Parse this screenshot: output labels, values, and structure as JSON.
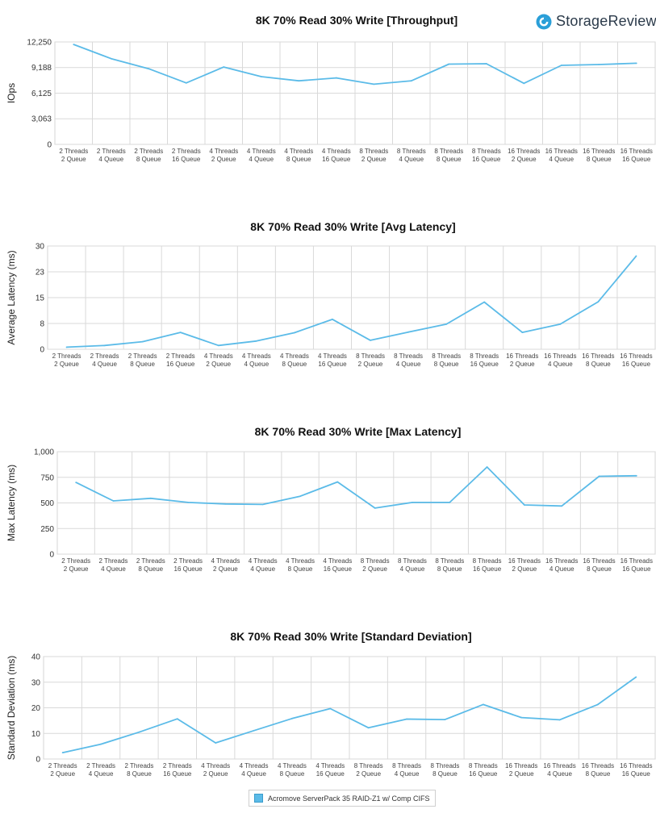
{
  "brand": {
    "logo_text": "StorageReview",
    "accent": "#5bbbe8",
    "logo_color": "#2a9fd8"
  },
  "legend": {
    "label": "Acromove ServerPack 35 RAID-Z1 w/ Comp CIFS",
    "color": "#5bbbe8"
  },
  "chart_data": [
    {
      "type": "line",
      "title": "8K 70% Read 30% Write [Throughput]",
      "ylabel": "IOps",
      "xlabel": "",
      "ylim": [
        0,
        12250
      ],
      "yticks": [
        "0",
        "3,063",
        "6,125",
        "9,188",
        "12,250"
      ],
      "ytick_values": [
        0,
        3063,
        6125,
        9188,
        12250
      ],
      "categories": [
        [
          "2 Threads",
          "2 Queue"
        ],
        [
          "2 Threads",
          "4 Queue"
        ],
        [
          "2 Threads",
          "8 Queue"
        ],
        [
          "2 Threads",
          "16 Queue"
        ],
        [
          "4 Threads",
          "2 Queue"
        ],
        [
          "4 Threads",
          "4 Queue"
        ],
        [
          "4 Threads",
          "8 Queue"
        ],
        [
          "4 Threads",
          "16 Queue"
        ],
        [
          "8 Threads",
          "2 Queue"
        ],
        [
          "8 Threads",
          "4 Queue"
        ],
        [
          "8 Threads",
          "8 Queue"
        ],
        [
          "8 Threads",
          "16 Queue"
        ],
        [
          "16 Threads",
          "2 Queue"
        ],
        [
          "16 Threads",
          "4 Queue"
        ],
        [
          "16 Threads",
          "8 Queue"
        ],
        [
          "16 Threads",
          "16 Queue"
        ]
      ],
      "series": [
        {
          "name": "Acromove ServerPack 35 RAID-Z1 w/ Comp CIFS",
          "values": [
            11950,
            10250,
            9050,
            7350,
            9250,
            8100,
            7600,
            7950,
            7200,
            7600,
            9600,
            9650,
            7300,
            9450,
            9550,
            9700
          ]
        }
      ],
      "grid": true
    },
    {
      "type": "line",
      "title": "8K 70% Read 30% Write [Avg Latency]",
      "ylabel": "Average Latency (ms)",
      "xlabel": "",
      "ylim": [
        0,
        30
      ],
      "yticks": [
        "0",
        "8",
        "15",
        "23",
        "30"
      ],
      "ytick_values": [
        0,
        7.5,
        15,
        22.5,
        30
      ],
      "categories": [
        [
          "2 Threads",
          "2 Queue"
        ],
        [
          "2 Threads",
          "4 Queue"
        ],
        [
          "2 Threads",
          "8 Queue"
        ],
        [
          "2 Threads",
          "16 Queue"
        ],
        [
          "4 Threads",
          "2 Queue"
        ],
        [
          "4 Threads",
          "4 Queue"
        ],
        [
          "4 Threads",
          "8 Queue"
        ],
        [
          "4 Threads",
          "16 Queue"
        ],
        [
          "8 Threads",
          "2 Queue"
        ],
        [
          "8 Threads",
          "4 Queue"
        ],
        [
          "8 Threads",
          "8 Queue"
        ],
        [
          "8 Threads",
          "16 Queue"
        ],
        [
          "16 Threads",
          "2 Queue"
        ],
        [
          "16 Threads",
          "4 Queue"
        ],
        [
          "16 Threads",
          "8 Queue"
        ],
        [
          "16 Threads",
          "16 Queue"
        ]
      ],
      "series": [
        {
          "name": "Acromove ServerPack 35 RAID-Z1 w/ Comp CIFS",
          "values": [
            0.6,
            1.1,
            2.2,
            4.9,
            1.1,
            2.4,
            4.8,
            8.7,
            2.6,
            5.0,
            7.3,
            13.7,
            4.9,
            7.3,
            13.8,
            27.1
          ]
        }
      ],
      "grid": true
    },
    {
      "type": "line",
      "title": "8K 70% Read 30% Write [Max Latency]",
      "ylabel": "Max Latency (ms)",
      "xlabel": "",
      "ylim": [
        0,
        1000
      ],
      "yticks": [
        "0",
        "250",
        "500",
        "750",
        "1,000"
      ],
      "ytick_values": [
        0,
        250,
        500,
        750,
        1000
      ],
      "categories": [
        [
          "2 Threads",
          "2 Queue"
        ],
        [
          "2 Threads",
          "4 Queue"
        ],
        [
          "2 Threads",
          "8 Queue"
        ],
        [
          "2 Threads",
          "16 Queue"
        ],
        [
          "4 Threads",
          "2 Queue"
        ],
        [
          "4 Threads",
          "4 Queue"
        ],
        [
          "4 Threads",
          "8 Queue"
        ],
        [
          "4 Threads",
          "16 Queue"
        ],
        [
          "8 Threads",
          "2 Queue"
        ],
        [
          "8 Threads",
          "4 Queue"
        ],
        [
          "8 Threads",
          "8 Queue"
        ],
        [
          "8 Threads",
          "16 Queue"
        ],
        [
          "16 Threads",
          "2 Queue"
        ],
        [
          "16 Threads",
          "4 Queue"
        ],
        [
          "16 Threads",
          "8 Queue"
        ],
        [
          "16 Threads",
          "16 Queue"
        ]
      ],
      "series": [
        {
          "name": "Acromove ServerPack 35 RAID-Z1 w/ Comp CIFS",
          "values": [
            700,
            520,
            545,
            505,
            490,
            485,
            565,
            705,
            450,
            505,
            505,
            850,
            480,
            470,
            760,
            765
          ]
        }
      ],
      "grid": true
    },
    {
      "type": "line",
      "title": "8K 70% Read 30% Write [Standard Deviation]",
      "ylabel": "Standard Deviation (ms)",
      "xlabel": "",
      "ylim": [
        0,
        40
      ],
      "yticks": [
        "0",
        "10",
        "20",
        "30",
        "40"
      ],
      "ytick_values": [
        0,
        10,
        20,
        30,
        40
      ],
      "categories": [
        [
          "2 Threads",
          "2 Queue"
        ],
        [
          "2 Threads",
          "4 Queue"
        ],
        [
          "2 Threads",
          "8 Queue"
        ],
        [
          "2 Threads",
          "16 Queue"
        ],
        [
          "4 Threads",
          "2 Queue"
        ],
        [
          "4 Threads",
          "4 Queue"
        ],
        [
          "4 Threads",
          "8 Queue"
        ],
        [
          "4 Threads",
          "16 Queue"
        ],
        [
          "8 Threads",
          "2 Queue"
        ],
        [
          "8 Threads",
          "4 Queue"
        ],
        [
          "8 Threads",
          "8 Queue"
        ],
        [
          "8 Threads",
          "16 Queue"
        ],
        [
          "16 Threads",
          "2 Queue"
        ],
        [
          "16 Threads",
          "4 Queue"
        ],
        [
          "16 Threads",
          "8 Queue"
        ],
        [
          "16 Threads",
          "16 Queue"
        ]
      ],
      "series": [
        {
          "name": "Acromove ServerPack 35 RAID-Z1 w/ Comp CIFS",
          "values": [
            2.5,
            5.8,
            10.5,
            15.7,
            6.3,
            11.1,
            15.8,
            19.7,
            12.2,
            15.6,
            15.4,
            21.3,
            16.2,
            15.3,
            21.3,
            32.0
          ]
        }
      ],
      "grid": true
    }
  ]
}
